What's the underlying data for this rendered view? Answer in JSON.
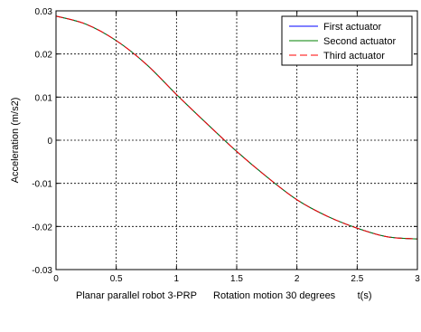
{
  "chart_data": {
    "type": "line",
    "title": "",
    "xlabel": "Planar parallel robot 3-PRP      Rotation motion 30 degrees        t(s)",
    "ylabel": "Acceleration (m/s2)",
    "xlim": [
      0,
      3
    ],
    "ylim": [
      -0.03,
      0.03
    ],
    "grid": true,
    "grid_style": "dashed",
    "legend_position": "top-right",
    "x_ticks": [
      "0",
      "0.5",
      "1",
      "1.5",
      "2",
      "2.5",
      "3"
    ],
    "y_ticks": [
      "0.03",
      "0.02",
      "0.01",
      "0",
      "-0.01",
      "-0.02",
      "-0.03"
    ],
    "x_tick_values": [
      0,
      0.5,
      1,
      1.5,
      2,
      2.5,
      3
    ],
    "y_tick_values": [
      0.03,
      0.02,
      0.01,
      0,
      -0.01,
      -0.02,
      -0.03
    ],
    "x": [
      0,
      0.25,
      0.5,
      0.75,
      1.0,
      1.25,
      1.5,
      1.75,
      2.0,
      2.25,
      2.5,
      2.75,
      3.0
    ],
    "series": [
      {
        "name": "First actuator",
        "color": "#0000ff",
        "dash": "",
        "values": [
          0.0288,
          0.0269,
          0.0231,
          0.0176,
          0.0106,
          0.0039,
          -0.0026,
          -0.0085,
          -0.0138,
          -0.0176,
          -0.0204,
          -0.0224,
          -0.0229
        ]
      },
      {
        "name": "Second actuator",
        "color": "#008000",
        "dash": "",
        "values": [
          0.0288,
          0.0269,
          0.0231,
          0.0176,
          0.0106,
          0.0039,
          -0.0026,
          -0.0085,
          -0.0138,
          -0.0176,
          -0.0204,
          -0.0224,
          -0.0229
        ]
      },
      {
        "name": "Third actuator",
        "color": "#ff0000",
        "dash": "8,4",
        "values": [
          0.0288,
          0.0269,
          0.0231,
          0.0176,
          0.0106,
          0.0039,
          -0.0026,
          -0.0085,
          -0.0138,
          -0.0176,
          -0.0204,
          -0.0224,
          -0.0229
        ]
      }
    ]
  }
}
